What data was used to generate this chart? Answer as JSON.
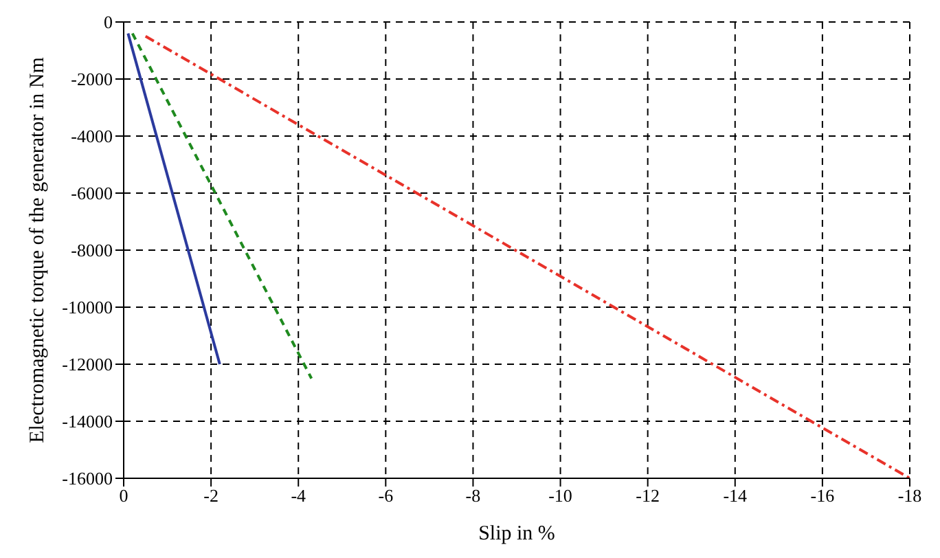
{
  "chart_data": {
    "type": "line",
    "xlabel": "Slip in %",
    "ylabel": "Electromagnetic torque of the generator in Nm",
    "xlim": [
      0,
      -18
    ],
    "xticks": [
      0,
      -2,
      -4,
      -6,
      -8,
      -10,
      -12,
      -14,
      -16,
      -18
    ],
    "ylim": [
      -16000,
      0
    ],
    "yticks": [
      -16000,
      -14000,
      -12000,
      -10000,
      -8000,
      -6000,
      -4000,
      -2000,
      0
    ],
    "grid": true,
    "legend": false,
    "series": [
      {
        "color": "#2b3a9e",
        "line_style": "solid",
        "x": [
          -0.1,
          -2.2
        ],
        "values": [
          -400,
          -12000
        ]
      },
      {
        "color": "#1f8a1f",
        "line_style": "dashed",
        "x": [
          -0.2,
          -4.3
        ],
        "values": [
          -400,
          -12500
        ]
      },
      {
        "color": "#e8322a",
        "line_style": "dashdot",
        "x": [
          -0.5,
          -18
        ],
        "values": [
          -500,
          -16000
        ]
      }
    ]
  }
}
